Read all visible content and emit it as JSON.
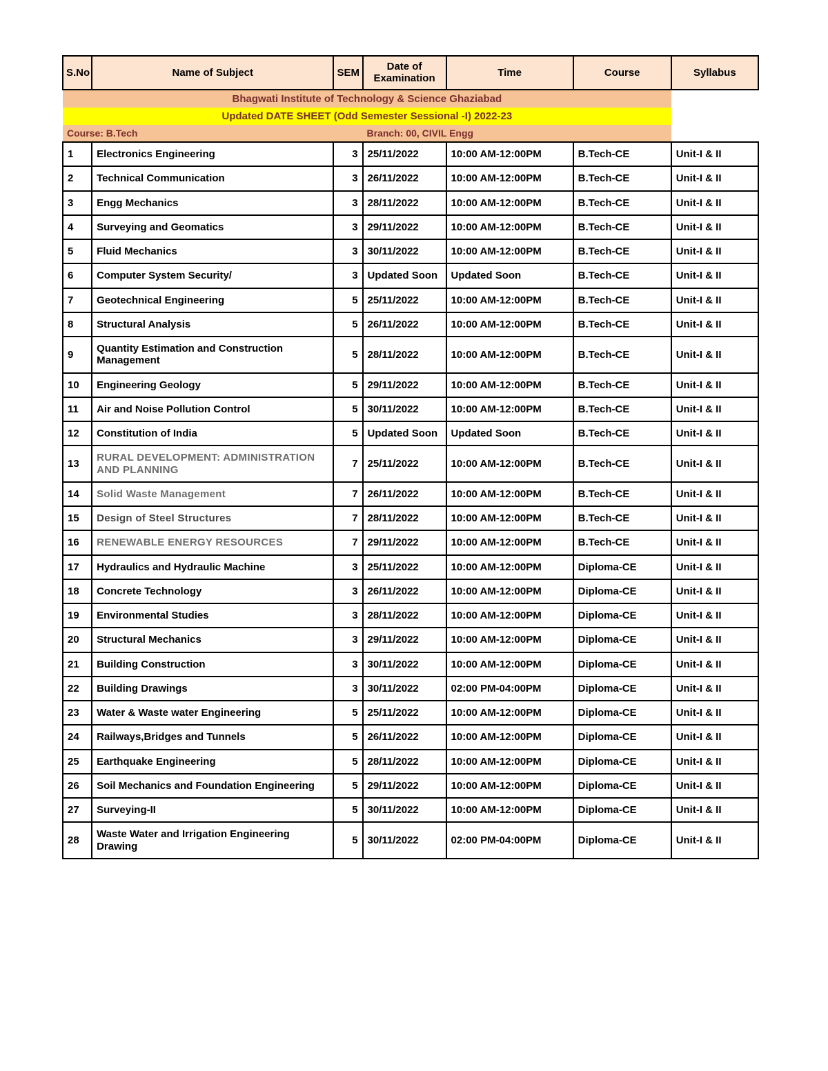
{
  "header": {
    "title": "Bhagwati Institute of Technology & Science    Ghaziabad",
    "subtitle": "Updated  DATE SHEET (Odd Semester Sessional -I) 2022-23",
    "course_label": "Course: B.Tech",
    "branch_label": "Branch:  00, CIVIL Engg"
  },
  "columns": {
    "sno": "S.No",
    "subject": "Name of Subject",
    "sem": "SEM",
    "date": "Date of Examination",
    "time": "Time",
    "course": "Course",
    "syllabus": "Syllabus"
  },
  "rows": [
    {
      "sno": "1",
      "subject": "Electronics Engineering",
      "sem": "3",
      "date": "25/11/2022",
      "time": "10:00 AM-12:00PM",
      "course": "B.Tech-CE",
      "syllabus": "Unit-I & II"
    },
    {
      "sno": "2",
      "subject": "Technical Communication",
      "sem": "3",
      "date": "26/11/2022",
      "time": "10:00 AM-12:00PM",
      "course": "B.Tech-CE",
      "syllabus": "Unit-I & II"
    },
    {
      "sno": "3",
      "subject": "Engg Mechanics",
      "sem": "3",
      "date": "28/11/2022",
      "time": "10:00 AM-12:00PM",
      "course": "B.Tech-CE",
      "syllabus": "Unit-I & II"
    },
    {
      "sno": "4",
      "subject": "Surveying and Geomatics",
      "sem": "3",
      "date": "29/11/2022",
      "time": "10:00 AM-12:00PM",
      "course": "B.Tech-CE",
      "syllabus": "Unit-I & II"
    },
    {
      "sno": "5",
      "subject": "Fluid Mechanics",
      "sem": "3",
      "date": "30/11/2022",
      "time": "10:00 AM-12:00PM",
      "course": "B.Tech-CE",
      "syllabus": "Unit-I & II"
    },
    {
      "sno": "6",
      "subject": "Computer System Security/",
      "sem": "3",
      "date": "Updated Soon",
      "time": "Updated Soon",
      "course": "B.Tech-CE",
      "syllabus": "Unit-I & II"
    },
    {
      "sno": "7",
      "subject": "Geotechnical Engineering",
      "sem": "5",
      "date": "25/11/2022",
      "time": "10:00 AM-12:00PM",
      "course": "B.Tech-CE",
      "syllabus": "Unit-I & II"
    },
    {
      "sno": "8",
      "subject": "Structural Analysis",
      "sem": "5",
      "date": "26/11/2022",
      "time": "10:00 AM-12:00PM",
      "course": "B.Tech-CE",
      "syllabus": "Unit-I & II"
    },
    {
      "sno": "9",
      "subject": "Quantity Estimation and Construction Management",
      "sem": "5",
      "date": "28/11/2022",
      "time": "10:00 AM-12:00PM",
      "course": "B.Tech-CE",
      "syllabus": "Unit-I & II"
    },
    {
      "sno": "10",
      "subject": "Engineering Geology",
      "sem": "5",
      "date": "29/11/2022",
      "time": "10:00 AM-12:00PM",
      "course": "B.Tech-CE",
      "syllabus": "Unit-I & II"
    },
    {
      "sno": "11",
      "subject": "Air and Noise Pollution Control",
      "sem": "5",
      "date": "30/11/2022",
      "time": "10:00 AM-12:00PM",
      "course": "B.Tech-CE",
      "syllabus": "Unit-I & II"
    },
    {
      "sno": "12",
      "subject": "Constitution of India",
      "sem": "5",
      "date": "Updated Soon",
      "time": "Updated Soon",
      "course": "B.Tech-CE",
      "syllabus": "Unit-I & II"
    },
    {
      "sno": "13",
      "subject": "RURAL DEVELOPMENT:  ADMINISTRATION AND PLANNING",
      "sem": "7",
      "date": "25/11/2022",
      "time": "10:00 AM-12:00PM",
      "course": "B.Tech-CE",
      "syllabus": "Unit-I & II",
      "style": "light"
    },
    {
      "sno": "14",
      "subject": "Solid Waste Management",
      "sem": "7",
      "date": "26/11/2022",
      "time": "10:00 AM-12:00PM",
      "course": "B.Tech-CE",
      "syllabus": "Unit-I & II",
      "style": "light"
    },
    {
      "sno": "15",
      "subject": "Design of Steel Structures",
      "sem": "7",
      "date": "28/11/2022",
      "time": "10:00 AM-12:00PM",
      "course": "B.Tech-CE",
      "syllabus": "Unit-I & II",
      "style": "sans"
    },
    {
      "sno": "16",
      "subject": "RENEWABLE ENERGY RESOURCES",
      "sem": "7",
      "date": "29/11/2022",
      "time": "10:00 AM-12:00PM",
      "course": "B.Tech-CE",
      "syllabus": "Unit-I & II",
      "style": "light"
    },
    {
      "sno": "17",
      "subject": "Hydraulics and Hydraulic Machine",
      "sem": "3",
      "date": "25/11/2022",
      "time": "10:00 AM-12:00PM",
      "course": "Diploma-CE",
      "syllabus": "Unit-I & II"
    },
    {
      "sno": "18",
      "subject": "Concrete Technology",
      "sem": "3",
      "date": "26/11/2022",
      "time": "10:00 AM-12:00PM",
      "course": "Diploma-CE",
      "syllabus": "Unit-I & II"
    },
    {
      "sno": "19",
      "subject": "Environmental Studies",
      "sem": "3",
      "date": "28/11/2022",
      "time": "10:00 AM-12:00PM",
      "course": "Diploma-CE",
      "syllabus": "Unit-I & II"
    },
    {
      "sno": "20",
      "subject": "Structural Mechanics",
      "sem": "3",
      "date": "29/11/2022",
      "time": "10:00 AM-12:00PM",
      "course": "Diploma-CE",
      "syllabus": "Unit-I & II"
    },
    {
      "sno": "21",
      "subject": "Building Construction",
      "sem": "3",
      "date": "30/11/2022",
      "time": "10:00 AM-12:00PM",
      "course": "Diploma-CE",
      "syllabus": "Unit-I & II"
    },
    {
      "sno": "22",
      "subject": "Building Drawings",
      "sem": "3",
      "date": "30/11/2022",
      "time": "02:00 PM-04:00PM",
      "course": "Diploma-CE",
      "syllabus": "Unit-I & II"
    },
    {
      "sno": "23",
      "subject": "Water & Waste water  Engineering",
      "sem": "5",
      "date": "25/11/2022",
      "time": "10:00 AM-12:00PM",
      "course": "Diploma-CE",
      "syllabus": "Unit-I & II"
    },
    {
      "sno": "24",
      "subject": "Railways,Bridges and Tunnels",
      "sem": "5",
      "date": "26/11/2022",
      "time": "10:00 AM-12:00PM",
      "course": "Diploma-CE",
      "syllabus": "Unit-I & II"
    },
    {
      "sno": "25",
      "subject": "Earthquake Engineering",
      "sem": "5",
      "date": "28/11/2022",
      "time": "10:00 AM-12:00PM",
      "course": "Diploma-CE",
      "syllabus": "Unit-I & II"
    },
    {
      "sno": "26",
      "subject": "Soil Mechanics and Foundation Engineering",
      "sem": "5",
      "date": "29/11/2022",
      "time": "10:00 AM-12:00PM",
      "course": "Diploma-CE",
      "syllabus": "Unit-I & II"
    },
    {
      "sno": "27",
      "subject": "Surveying-II",
      "sem": "5",
      "date": "30/11/2022",
      "time": "10:00 AM-12:00PM",
      "course": "Diploma-CE",
      "syllabus": "Unit-I & II"
    },
    {
      "sno": "28",
      "subject": "Waste Water and Irrigation  Engineering Drawing",
      "sem": "5",
      "date": "30/11/2022",
      "time": "02:00 PM-04:00PM",
      "course": "Diploma-CE",
      "syllabus": "Unit-I & II"
    }
  ]
}
